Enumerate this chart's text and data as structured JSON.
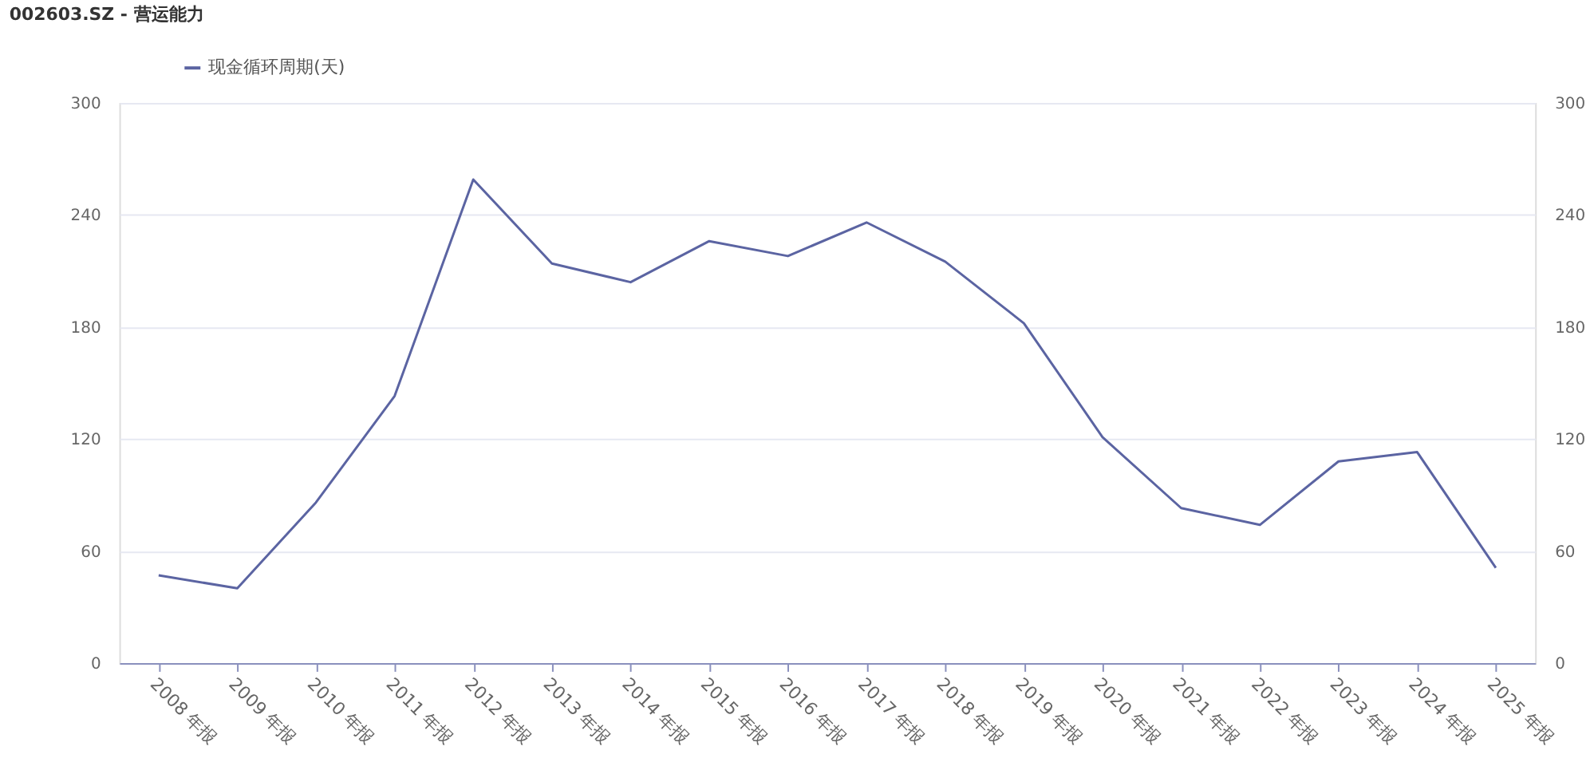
{
  "chart_data": {
    "type": "line",
    "title": "002603.SZ - 营运能力",
    "categories": [
      "2008 年报",
      "2009 年报",
      "2010 年报",
      "2011 年报",
      "2012 年报",
      "2013 年报",
      "2014 年报",
      "2015 年报",
      "2016 年报",
      "2017 年报",
      "2018 年报",
      "2019 年报",
      "2020 年报",
      "2021 年报",
      "2022 年报",
      "2023 年报",
      "2024 年报",
      "2025 年报"
    ],
    "series": [
      {
        "name": "现金循环周期(天)",
        "color": "#5b64a2",
        "values": [
          47,
          40,
          86,
          143,
          259,
          214,
          204,
          226,
          218,
          236,
          215,
          182,
          121,
          83,
          74,
          108,
          113,
          51
        ]
      }
    ],
    "ylim": [
      0,
      300
    ],
    "yticks": [
      0,
      60,
      120,
      180,
      240,
      300
    ],
    "y2lim": [
      0,
      300
    ],
    "y2ticks": [
      0,
      60,
      120,
      180,
      240,
      300
    ],
    "grid": "y",
    "legend": "top left",
    "marker": "none",
    "line_style": "solid"
  }
}
